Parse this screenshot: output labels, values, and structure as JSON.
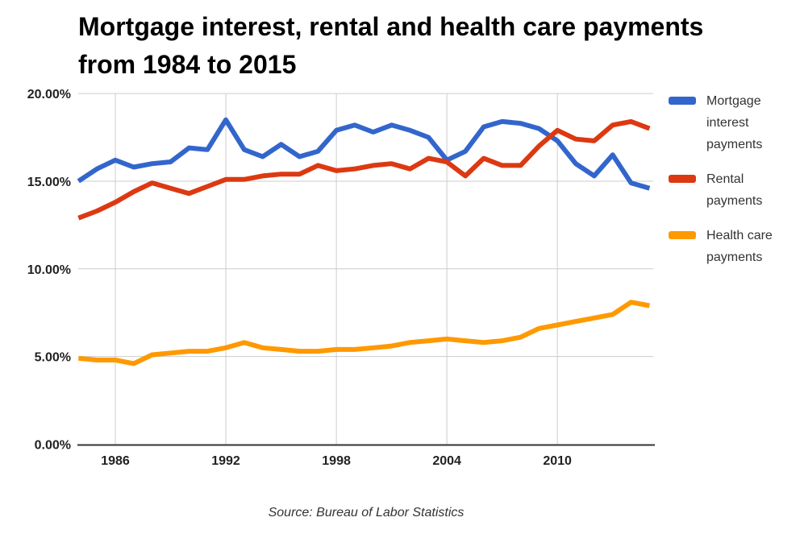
{
  "title": "Mortgage interest, rental and health care payments from 1984 to 2015",
  "source": "Source: Bureau of Labor Statistics",
  "chart_data": {
    "type": "line",
    "title": "Mortgage interest, rental and health care payments from 1984 to 2015",
    "x": [
      1984,
      1985,
      1986,
      1987,
      1988,
      1989,
      1990,
      1991,
      1992,
      1993,
      1994,
      1995,
      1996,
      1997,
      1998,
      1999,
      2000,
      2001,
      2002,
      2003,
      2004,
      2005,
      2006,
      2007,
      2008,
      2009,
      2010,
      2011,
      2012,
      2013,
      2014,
      2015
    ],
    "series": [
      {
        "name": "Mortgage interest payments",
        "color": "#3366CC",
        "values": [
          15.0,
          15.7,
          16.2,
          15.8,
          16.0,
          16.1,
          16.9,
          16.8,
          18.5,
          16.8,
          16.4,
          17.1,
          16.4,
          16.7,
          17.9,
          18.2,
          17.8,
          18.2,
          17.9,
          17.5,
          16.2,
          16.7,
          18.1,
          18.4,
          18.3,
          18.0,
          17.3,
          16.0,
          15.3,
          16.5,
          14.9,
          14.6
        ]
      },
      {
        "name": "Rental payments",
        "color": "#DC3912",
        "values": [
          12.9,
          13.3,
          13.8,
          14.4,
          14.9,
          14.6,
          14.3,
          14.7,
          15.1,
          15.1,
          15.3,
          15.4,
          15.4,
          15.9,
          15.6,
          15.7,
          15.9,
          16.0,
          15.7,
          16.3,
          16.1,
          15.3,
          16.3,
          15.9,
          15.9,
          17.0,
          17.9,
          17.4,
          17.3,
          18.2,
          18.4,
          18.0
        ]
      },
      {
        "name": "Health care payments",
        "color": "#FF9900",
        "values": [
          4.9,
          4.8,
          4.8,
          4.6,
          5.1,
          5.2,
          5.3,
          5.3,
          5.5,
          5.8,
          5.5,
          5.4,
          5.3,
          5.3,
          5.4,
          5.4,
          5.5,
          5.6,
          5.8,
          5.9,
          6.0,
          5.9,
          5.8,
          5.9,
          6.1,
          6.6,
          6.8,
          7.0,
          7.2,
          7.4,
          8.1,
          7.9
        ]
      }
    ],
    "y_ticks": [
      {
        "value": 0,
        "label": "0.00%"
      },
      {
        "value": 5,
        "label": "5.00%"
      },
      {
        "value": 10,
        "label": "10.00%"
      },
      {
        "value": 15,
        "label": "15.00%"
      },
      {
        "value": 20,
        "label": "20.00%"
      }
    ],
    "x_ticks": [
      {
        "value": 1986,
        "label": "1986"
      },
      {
        "value": 1992,
        "label": "1992"
      },
      {
        "value": 1998,
        "label": "1998"
      },
      {
        "value": 2004,
        "label": "2004"
      },
      {
        "value": 2010,
        "label": "2010"
      }
    ],
    "xlim": [
      1984,
      2015
    ],
    "ylim": [
      0,
      20
    ],
    "grid": true,
    "legend_position": "right",
    "axis_color": "#333333",
    "grid_color": "#CCCCCC",
    "tick_label_color": "#222222"
  }
}
